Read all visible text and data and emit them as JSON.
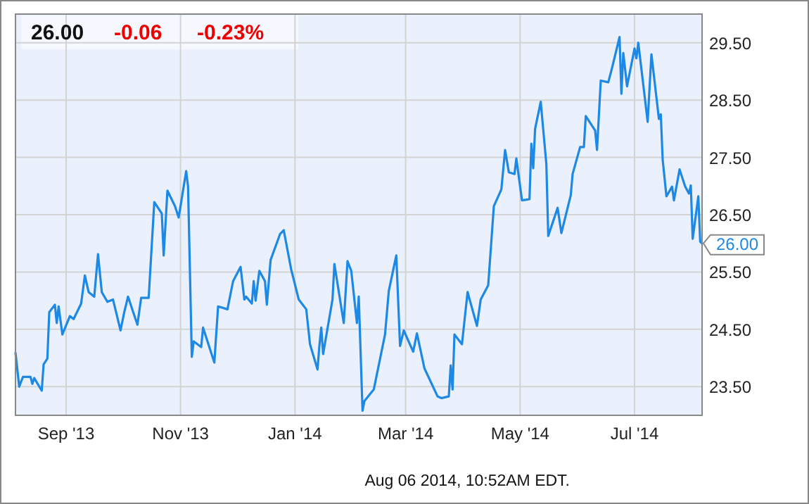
{
  "chart_data": {
    "type": "line",
    "grid": true,
    "marker": "none",
    "annotations": [
      "26.00",
      "-0.06",
      "-0.23%",
      "Aug 06 2014, 10:52AM EDT.",
      {
        "text": "26.00",
        "x": "2014-08-06",
        "y": 26.0
      }
    ],
    "xlim": [
      "2013-08-05",
      "2014-08-06"
    ],
    "xticks": [
      {
        "value": "2013-09-01",
        "label": "Sep '13"
      },
      {
        "value": "2013-11-01",
        "label": "Nov '13"
      },
      {
        "value": "2014-01-01",
        "label": "Jan '14"
      },
      {
        "value": "2014-03-01",
        "label": "Mar '14"
      },
      {
        "value": "2014-05-01",
        "label": "May '14"
      },
      {
        "value": "2014-07-01",
        "label": "Jul '14"
      }
    ],
    "ylim": [
      23,
      30
    ],
    "yticks": [
      {
        "value": 23.5,
        "label": "23.50"
      },
      {
        "value": 24.5,
        "label": "24.50"
      },
      {
        "value": 25.5,
        "label": "25.50"
      },
      {
        "value": 26.5,
        "label": "26.50"
      },
      {
        "value": 27.5,
        "label": "27.50"
      },
      {
        "value": 28.5,
        "label": "28.50"
      },
      {
        "value": 29.5,
        "label": "29.50"
      }
    ],
    "x": [
      "2013-08-05",
      "2013-08-07",
      "2013-08-09",
      "2013-08-13",
      "2013-08-14",
      "2013-08-15",
      "2013-08-19",
      "2013-08-20",
      "2013-08-22",
      "2013-08-23",
      "2013-08-26",
      "2013-08-27",
      "2013-08-28",
      "2013-08-30",
      "2013-09-03",
      "2013-09-05",
      "2013-09-09",
      "2013-09-11",
      "2013-09-13",
      "2013-09-16",
      "2013-09-18",
      "2013-09-20",
      "2013-09-23",
      "2013-09-26",
      "2013-09-30",
      "2013-10-02",
      "2013-10-04",
      "2013-10-09",
      "2013-10-11",
      "2013-10-15",
      "2013-10-18",
      "2013-10-22",
      "2013-10-23",
      "2013-10-25",
      "2013-10-29",
      "2013-10-31",
      "2013-11-04",
      "2013-11-05",
      "2013-11-07",
      "2013-11-08",
      "2013-11-12",
      "2013-11-13",
      "2013-11-19",
      "2013-11-21",
      "2013-11-26",
      "2013-11-29",
      "2013-12-03",
      "2013-12-05",
      "2013-12-06",
      "2013-12-09",
      "2013-12-10",
      "2013-12-11",
      "2013-12-13",
      "2013-12-16",
      "2013-12-17",
      "2013-12-19",
      "2013-12-24",
      "2013-12-26",
      "2013-12-30",
      "2014-01-03",
      "2014-01-07",
      "2014-01-09",
      "2014-01-13",
      "2014-01-14",
      "2014-01-15",
      "2014-01-16",
      "2014-01-21",
      "2014-01-22",
      "2014-01-27",
      "2014-01-29",
      "2014-01-31",
      "2014-02-03",
      "2014-02-04",
      "2014-02-06",
      "2014-02-07",
      "2014-02-12",
      "2014-02-18",
      "2014-02-20",
      "2014-02-24",
      "2014-02-26",
      "2014-02-28",
      "2014-03-05",
      "2014-03-07",
      "2014-03-11",
      "2014-03-18",
      "2014-03-20",
      "2014-03-24",
      "2014-03-25",
      "2014-03-26",
      "2014-03-27",
      "2014-03-31",
      "2014-04-03",
      "2014-04-08",
      "2014-04-10",
      "2014-04-14",
      "2014-04-17",
      "2014-04-21",
      "2014-04-23",
      "2014-04-25",
      "2014-04-28",
      "2014-04-29",
      "2014-05-02",
      "2014-05-06",
      "2014-05-07",
      "2014-05-08",
      "2014-05-09",
      "2014-05-12",
      "2014-05-15",
      "2014-05-16",
      "2014-05-21",
      "2014-05-23",
      "2014-05-28",
      "2014-05-29",
      "2014-06-02",
      "2014-06-04",
      "2014-06-05",
      "2014-06-10",
      "2014-06-11",
      "2014-06-13",
      "2014-06-17",
      "2014-06-19",
      "2014-06-23",
      "2014-06-24",
      "2014-06-25",
      "2014-06-27",
      "2014-07-01",
      "2014-07-02",
      "2014-07-03",
      "2014-07-08",
      "2014-07-10",
      "2014-07-14",
      "2014-07-15",
      "2014-07-16",
      "2014-07-18",
      "2014-07-21",
      "2014-07-22",
      "2014-07-25",
      "2014-07-28",
      "2014-07-30",
      "2014-07-31",
      "2014-08-01",
      "2014-08-04",
      "2014-08-05",
      "2014-08-06"
    ],
    "series": [
      {
        "color": "#1e88e5",
        "line_style": "solid",
        "values": [
          24.09,
          23.5,
          23.67,
          23.67,
          23.55,
          23.65,
          23.43,
          23.89,
          23.99,
          24.8,
          24.93,
          24.61,
          24.9,
          24.41,
          24.73,
          24.68,
          24.95,
          25.44,
          25.15,
          25.07,
          25.81,
          25.15,
          24.98,
          25.02,
          24.48,
          24.8,
          25.07,
          24.58,
          25.05,
          25.05,
          26.72,
          26.52,
          25.79,
          26.92,
          26.65,
          26.45,
          27.26,
          26.99,
          24.02,
          24.29,
          24.19,
          24.53,
          23.92,
          24.9,
          24.85,
          25.34,
          25.59,
          25.02,
          25.07,
          24.95,
          25.34,
          25.0,
          25.52,
          25.34,
          24.93,
          25.71,
          26.16,
          26.23,
          25.54,
          25.02,
          24.85,
          24.24,
          23.8,
          24.21,
          24.53,
          24.07,
          25.02,
          25.64,
          24.61,
          25.69,
          25.52,
          24.61,
          25.07,
          23.08,
          23.25,
          23.45,
          24.41,
          25.17,
          25.79,
          24.21,
          24.48,
          24.11,
          24.43,
          23.82,
          23.33,
          23.3,
          23.33,
          23.87,
          23.45,
          24.41,
          24.24,
          25.15,
          24.56,
          25.02,
          25.27,
          26.65,
          26.94,
          27.63,
          27.24,
          27.21,
          27.48,
          26.75,
          26.77,
          27.74,
          27.31,
          28.0,
          28.47,
          27.38,
          26.13,
          26.62,
          26.18,
          26.84,
          27.21,
          27.68,
          27.68,
          28.22,
          27.97,
          27.63,
          28.84,
          28.81,
          29.06,
          29.6,
          28.61,
          29.32,
          28.74,
          29.4,
          29.23,
          29.5,
          28.12,
          29.3,
          28.17,
          28.25,
          27.46,
          26.82,
          26.99,
          26.75,
          27.29,
          26.99,
          26.87,
          27.01,
          26.08,
          26.82,
          26.03,
          26.0
        ]
      }
    ]
  }
}
